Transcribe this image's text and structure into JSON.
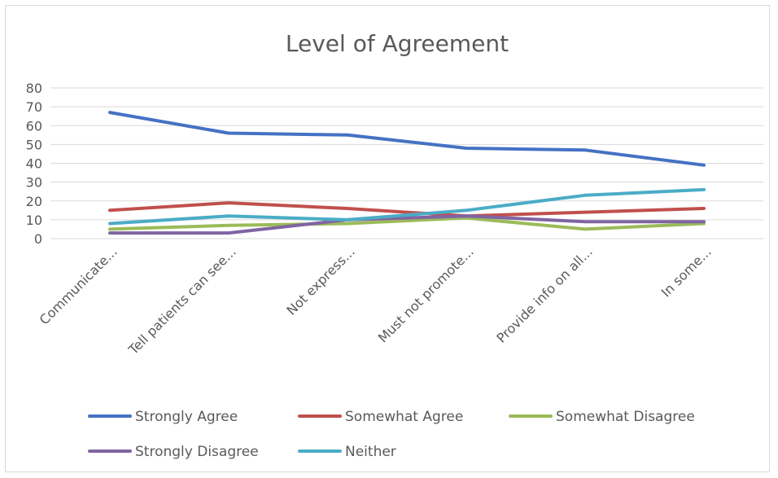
{
  "chart_data": {
    "type": "line",
    "title": "Level of Agreement",
    "xlabel": "",
    "ylabel": "",
    "ylim": [
      0,
      80
    ],
    "yticks": [
      0,
      10,
      20,
      30,
      40,
      50,
      60,
      70,
      80
    ],
    "grid": true,
    "legend_position": "bottom",
    "categories": [
      "Communicate...",
      "Tell patients can see...",
      "Not express...",
      "Must not promote...",
      "Provide info on all...",
      "In some..."
    ],
    "series": [
      {
        "name": "Strongly Agree",
        "color": "#4472c4",
        "values": [
          67,
          56,
          55,
          48,
          47,
          39
        ]
      },
      {
        "name": "Somewhat Agree",
        "color": "#c0504d",
        "values": [
          15,
          19,
          16,
          12,
          14,
          16
        ]
      },
      {
        "name": "Somewhat Disagree",
        "color": "#9bbb59",
        "values": [
          5,
          7,
          8,
          11,
          5,
          8
        ]
      },
      {
        "name": "Strongly Disagree",
        "color": "#8064a2",
        "values": [
          3,
          3,
          10,
          12,
          9,
          9
        ]
      },
      {
        "name": "Neither",
        "color": "#4bacc6",
        "values": [
          8,
          12,
          10,
          15,
          23,
          26
        ]
      }
    ]
  }
}
